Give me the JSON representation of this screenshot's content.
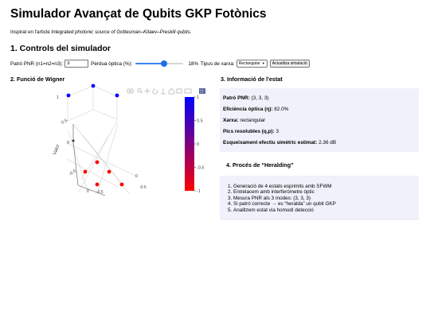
{
  "header": {
    "title": "Simulador Avançat de Qubits GKP Fotònics",
    "intro_prefix": "Inspirat en l'article ",
    "intro_paper": "Integrated photonic source of Gottesman–Kitaev–Preskill qubits",
    "intro_suffix": "."
  },
  "controls": {
    "section_title": "1. Controls del simulador",
    "pnr_label": "Patró PNR (n1=n2=n3):",
    "pnr_value": "3",
    "loss_label": "Pèrdua òptica (%):",
    "loss_value": 18,
    "loss_display": "18%",
    "grid_label": "Tipus de xarxa:",
    "grid_selected": "Rectangular",
    "update_button": "Actualitza simulació"
  },
  "wigner": {
    "section_title": "2. Funció de Wigner",
    "toolbar_icons": [
      "camera-icon",
      "zoom-icon",
      "pan-icon",
      "orbit-icon",
      "turntable-icon",
      "home-icon",
      "reset-icon",
      "hover-icon",
      "plotly-logo-icon"
    ]
  },
  "chart_data": {
    "type": "scatter",
    "title": "",
    "zlabel": "Valor",
    "z_tick_labels": [
      "1",
      "0.5",
      "0",
      "-0.5"
    ],
    "x_tick_labels": [
      "0",
      "-0.5"
    ],
    "colorbar": {
      "ticks": [
        "1",
        "0.5",
        "0",
        "-0.5",
        "-1"
      ],
      "range": [
        -1,
        1
      ],
      "colors": [
        "#0000ff",
        "#ff0000"
      ]
    },
    "points": [
      {
        "value": 1
      },
      {
        "value": 1
      },
      {
        "value": 1
      },
      {
        "value": 0
      },
      {
        "value": -1
      },
      {
        "value": -1
      },
      {
        "value": -1
      },
      {
        "value": -1
      },
      {
        "value": -1
      }
    ]
  },
  "state_info": {
    "section_title": "3. Informació de l'estat",
    "pnr_label": "Patró PNR:",
    "pnr_value": "(3, 3, 3)",
    "efficiency_label": "Eficiència òptica (η):",
    "efficiency_value": "82.0%",
    "grid_label": "Xarxa:",
    "grid_value": "rectangular",
    "peaks_label": "Pics resolubles (q,p):",
    "peaks_value": "3",
    "squeezing_label": "Esqueixament efectiu simètric estimat:",
    "squeezing_value": "2.36 dB"
  },
  "heralding": {
    "section_title": "4. Procés de “Heralding”",
    "steps": [
      "Generació de 4 estats esprimits amb SFWM",
      "Entrelacem amb interferòmetre òptic",
      "Mesura PNR als 3 modes: (3, 3, 3)",
      "Si patró correcte → es “heralda” un qubit GKP",
      "Analitzem estat via homodí detecció"
    ]
  }
}
